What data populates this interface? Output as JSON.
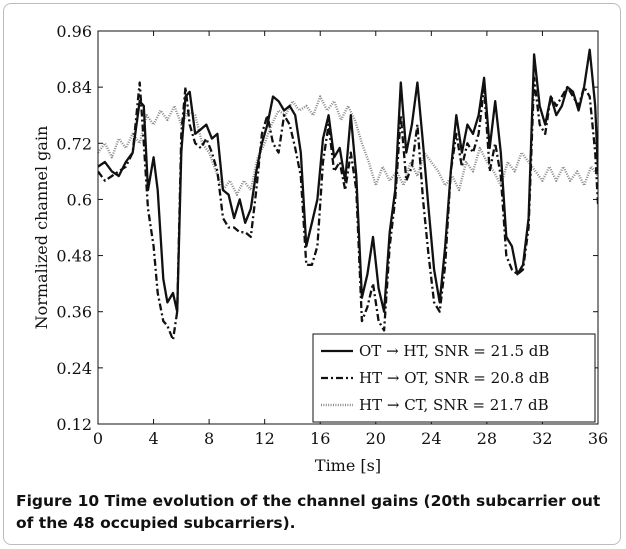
{
  "chart_data": {
    "type": "line",
    "title": "",
    "xlabel": "Time [s]",
    "ylabel": "Normalized channel gain",
    "xlim": [
      0,
      36
    ],
    "ylim": [
      0.12,
      0.96
    ],
    "xticks": [
      "0",
      "4",
      "8",
      "12",
      "16",
      "20",
      "24",
      "28",
      "32",
      "36"
    ],
    "yticks": [
      "0.12",
      "0.24",
      "0.36",
      "0.48",
      "0.6",
      "0.72",
      "0.84",
      "0.96"
    ],
    "legend_position": "bottom-right",
    "grid": false,
    "series": [
      {
        "name": "OT → HT, SNR = 21.5 dB",
        "style": "solid",
        "x": [
          0,
          0.5,
          1,
          1.5,
          2,
          2.5,
          3,
          3.3,
          3.6,
          4,
          4.3,
          4.7,
          5.0,
          5.4,
          5.7,
          6.0,
          6.3,
          6.6,
          7.0,
          7.4,
          7.8,
          8.2,
          8.6,
          9.0,
          9.4,
          9.8,
          10.2,
          10.6,
          11.0,
          11.4,
          11.8,
          12.2,
          12.6,
          13.0,
          13.4,
          13.8,
          14.2,
          14.6,
          15.0,
          15.4,
          15.8,
          16.2,
          16.6,
          17.0,
          17.4,
          17.8,
          18.2,
          18.6,
          19.0,
          19.4,
          19.8,
          20.2,
          20.6,
          21.0,
          21.4,
          21.8,
          22.2,
          22.6,
          23.0,
          23.4,
          23.8,
          24.2,
          24.6,
          25.0,
          25.4,
          25.8,
          26.2,
          26.6,
          27.0,
          27.4,
          27.8,
          28.2,
          28.6,
          29.0,
          29.4,
          29.8,
          30.2,
          30.6,
          31.0,
          31.4,
          31.8,
          32.2,
          32.6,
          33.0,
          33.4,
          33.8,
          34.2,
          34.6,
          35.0,
          35.4,
          35.8,
          36
        ],
        "y": [
          0.67,
          0.68,
          0.66,
          0.65,
          0.68,
          0.7,
          0.81,
          0.8,
          0.62,
          0.69,
          0.62,
          0.43,
          0.38,
          0.4,
          0.36,
          0.7,
          0.82,
          0.83,
          0.74,
          0.75,
          0.76,
          0.73,
          0.74,
          0.62,
          0.61,
          0.56,
          0.6,
          0.55,
          0.58,
          0.66,
          0.72,
          0.76,
          0.82,
          0.81,
          0.79,
          0.8,
          0.78,
          0.7,
          0.5,
          0.55,
          0.6,
          0.73,
          0.78,
          0.69,
          0.71,
          0.64,
          0.78,
          0.65,
          0.39,
          0.44,
          0.52,
          0.41,
          0.36,
          0.53,
          0.62,
          0.85,
          0.7,
          0.76,
          0.85,
          0.72,
          0.58,
          0.45,
          0.38,
          0.5,
          0.66,
          0.78,
          0.7,
          0.76,
          0.74,
          0.78,
          0.86,
          0.71,
          0.81,
          0.7,
          0.52,
          0.5,
          0.44,
          0.46,
          0.56,
          0.91,
          0.8,
          0.76,
          0.82,
          0.78,
          0.8,
          0.84,
          0.83,
          0.79,
          0.84,
          0.92,
          0.8,
          0.66
        ]
      },
      {
        "name": "HT → OT, SNR = 20.8 dB",
        "style": "dash-dot",
        "x": [
          0,
          0.5,
          1,
          1.5,
          2,
          2.5,
          3,
          3.3,
          3.6,
          4,
          4.3,
          4.7,
          5.0,
          5.4,
          5.7,
          6.0,
          6.3,
          6.6,
          7.0,
          7.4,
          7.8,
          8.2,
          8.6,
          9.0,
          9.4,
          9.8,
          10.2,
          10.6,
          11.0,
          11.4,
          11.8,
          12.2,
          12.6,
          13.0,
          13.4,
          13.8,
          14.2,
          14.6,
          15.0,
          15.4,
          15.8,
          16.2,
          16.6,
          17.0,
          17.4,
          17.8,
          18.2,
          18.6,
          19.0,
          19.4,
          19.8,
          20.2,
          20.6,
          21.0,
          21.4,
          21.8,
          22.2,
          22.6,
          23.0,
          23.4,
          23.8,
          24.2,
          24.6,
          25.0,
          25.4,
          25.8,
          26.2,
          26.6,
          27.0,
          27.4,
          27.8,
          28.2,
          28.6,
          29.0,
          29.4,
          29.8,
          30.2,
          30.6,
          31.0,
          31.4,
          31.8,
          32.2,
          32.6,
          33.0,
          33.4,
          33.8,
          34.2,
          34.6,
          35.0,
          35.4,
          35.8,
          36
        ],
        "y": [
          0.66,
          0.64,
          0.65,
          0.66,
          0.67,
          0.7,
          0.85,
          0.72,
          0.58,
          0.5,
          0.4,
          0.34,
          0.33,
          0.3,
          0.36,
          0.74,
          0.84,
          0.76,
          0.72,
          0.71,
          0.73,
          0.7,
          0.66,
          0.56,
          0.54,
          0.54,
          0.53,
          0.53,
          0.52,
          0.62,
          0.74,
          0.78,
          0.72,
          0.7,
          0.78,
          0.76,
          0.71,
          0.65,
          0.46,
          0.46,
          0.5,
          0.68,
          0.76,
          0.66,
          0.68,
          0.62,
          0.7,
          0.62,
          0.34,
          0.37,
          0.42,
          0.34,
          0.32,
          0.5,
          0.6,
          0.78,
          0.64,
          0.67,
          0.76,
          0.6,
          0.48,
          0.38,
          0.36,
          0.46,
          0.66,
          0.74,
          0.67,
          0.72,
          0.7,
          0.74,
          0.84,
          0.66,
          0.72,
          0.65,
          0.48,
          0.45,
          0.44,
          0.45,
          0.54,
          0.86,
          0.76,
          0.74,
          0.82,
          0.8,
          0.82,
          0.84,
          0.82,
          0.8,
          0.84,
          0.82,
          0.7,
          0.59
        ]
      },
      {
        "name": "HT → CT, SNR = 21.7 dB",
        "style": "dotted",
        "x": [
          0,
          0.5,
          1,
          1.5,
          2,
          2.5,
          3,
          3.5,
          4,
          4.5,
          5,
          5.5,
          6,
          6.5,
          7,
          7.5,
          8,
          8.5,
          9,
          9.5,
          10,
          10.5,
          11,
          11.5,
          12,
          12.5,
          13,
          13.5,
          14,
          14.5,
          15,
          15.5,
          16,
          16.5,
          17,
          17.5,
          18,
          18.5,
          19,
          19.5,
          20,
          20.5,
          21,
          21.5,
          22,
          22.5,
          23,
          23.5,
          24,
          24.5,
          25,
          25.5,
          26,
          26.5,
          27,
          27.5,
          28,
          28.5,
          29,
          29.5,
          30,
          30.5,
          31,
          31.5,
          32,
          32.5,
          33,
          33.5,
          34,
          34.5,
          35,
          35.5,
          36
        ],
        "y": [
          0.7,
          0.72,
          0.69,
          0.73,
          0.71,
          0.74,
          0.72,
          0.78,
          0.76,
          0.79,
          0.77,
          0.8,
          0.76,
          0.79,
          0.78,
          0.72,
          0.7,
          0.66,
          0.62,
          0.64,
          0.61,
          0.64,
          0.62,
          0.69,
          0.72,
          0.76,
          0.79,
          0.78,
          0.81,
          0.79,
          0.8,
          0.78,
          0.82,
          0.79,
          0.81,
          0.77,
          0.8,
          0.77,
          0.72,
          0.68,
          0.63,
          0.67,
          0.64,
          0.66,
          0.63,
          0.68,
          0.65,
          0.7,
          0.68,
          0.66,
          0.63,
          0.65,
          0.62,
          0.68,
          0.66,
          0.71,
          0.68,
          0.66,
          0.63,
          0.68,
          0.66,
          0.7,
          0.68,
          0.66,
          0.64,
          0.67,
          0.64,
          0.67,
          0.64,
          0.66,
          0.63,
          0.67,
          0.65
        ]
      }
    ]
  },
  "caption": {
    "label": "Figure 10",
    "text": "Time evolution of the channel gains (20th subcarrier out of the 48 occupied subcarriers)."
  }
}
